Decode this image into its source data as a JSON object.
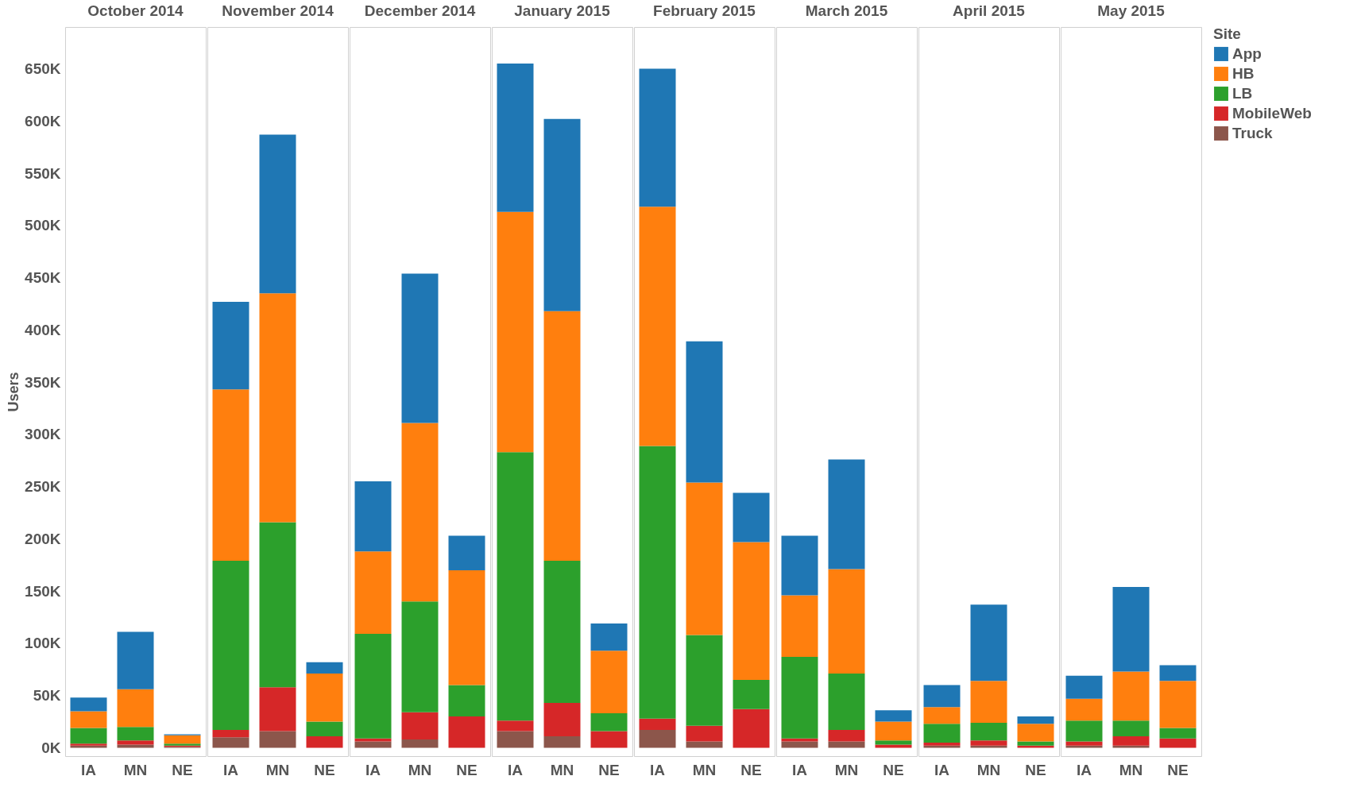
{
  "chart_data": [
    {
      "type": "bar",
      "stacked": true,
      "title": "October 2014",
      "ylabel": "Users",
      "legend": "top right",
      "legend_title": "Site",
      "categories": [
        "IA",
        "MN",
        "NE"
      ],
      "ylim": [
        -8000,
        690000
      ],
      "yticks": [
        {
          "value": 0,
          "label": "0K"
        },
        {
          "value": 50000,
          "label": "50K"
        },
        {
          "value": 100000,
          "label": "100K"
        },
        {
          "value": 150000,
          "label": "150K"
        },
        {
          "value": 200000,
          "label": "200K"
        },
        {
          "value": 250000,
          "label": "250K"
        },
        {
          "value": 300000,
          "label": "300K"
        },
        {
          "value": 350000,
          "label": "350K"
        },
        {
          "value": 400000,
          "label": "400K"
        },
        {
          "value": 450000,
          "label": "450K"
        },
        {
          "value": 500000,
          "label": "500K"
        },
        {
          "value": 550000,
          "label": "550K"
        },
        {
          "value": 600000,
          "label": "600K"
        },
        {
          "value": 650000,
          "label": "650K"
        }
      ],
      "series": [
        {
          "name": "Truck",
          "color": "#8c564b",
          "values": [
            2000,
            3000,
            1000
          ]
        },
        {
          "name": "MobileWeb",
          "color": "#d62728",
          "values": [
            2000,
            4000,
            1000
          ]
        },
        {
          "name": "LB",
          "color": "#2ca02c",
          "values": [
            15000,
            13000,
            2000
          ]
        },
        {
          "name": "HB",
          "color": "#ff7f0e",
          "values": [
            16000,
            36000,
            8000
          ]
        },
        {
          "name": "App",
          "color": "#1f77b4",
          "values": [
            13000,
            55000,
            1000
          ]
        }
      ]
    },
    {
      "type": "bar",
      "stacked": true,
      "title": "November 2014",
      "tick_labels": "x",
      "categories": [
        "IA",
        "MN",
        "NE"
      ],
      "ylim": [
        -8000,
        690000
      ],
      "series": [
        {
          "name": "Truck",
          "color": "#8c564b",
          "values": [
            10000,
            16000,
            null
          ]
        },
        {
          "name": "MobileWeb",
          "color": "#d62728",
          "values": [
            7000,
            42000,
            11000
          ]
        },
        {
          "name": "LB",
          "color": "#2ca02c",
          "values": [
            162000,
            158000,
            14000
          ]
        },
        {
          "name": "HB",
          "color": "#ff7f0e",
          "values": [
            164000,
            219000,
            46000
          ]
        },
        {
          "name": "App",
          "color": "#1f77b4",
          "values": [
            84000,
            152000,
            11000
          ]
        }
      ]
    },
    {
      "type": "bar",
      "stacked": true,
      "title": "December 2014",
      "tick_labels": "x",
      "categories": [
        "IA",
        "MN",
        "NE"
      ],
      "ylim": [
        -8000,
        690000
      ],
      "series": [
        {
          "name": "Truck",
          "color": "#8c564b",
          "values": [
            6000,
            8000,
            null
          ]
        },
        {
          "name": "MobileWeb",
          "color": "#d62728",
          "values": [
            3000,
            26000,
            30000
          ]
        },
        {
          "name": "LB",
          "color": "#2ca02c",
          "values": [
            100000,
            106000,
            30000
          ]
        },
        {
          "name": "HB",
          "color": "#ff7f0e",
          "values": [
            79000,
            171000,
            110000
          ]
        },
        {
          "name": "App",
          "color": "#1f77b4",
          "values": [
            67000,
            143000,
            33000
          ]
        }
      ]
    },
    {
      "type": "bar",
      "stacked": true,
      "title": "January 2015",
      "tick_labels": "x",
      "categories": [
        "IA",
        "MN",
        "NE"
      ],
      "ylim": [
        -8000,
        690000
      ],
      "series": [
        {
          "name": "Truck",
          "color": "#8c564b",
          "values": [
            16000,
            11000,
            null
          ]
        },
        {
          "name": "MobileWeb",
          "color": "#d62728",
          "values": [
            10000,
            32000,
            16000
          ]
        },
        {
          "name": "LB",
          "color": "#2ca02c",
          "values": [
            257000,
            136000,
            17000
          ]
        },
        {
          "name": "HB",
          "color": "#ff7f0e",
          "values": [
            230000,
            239000,
            60000
          ]
        },
        {
          "name": "App",
          "color": "#1f77b4",
          "values": [
            142000,
            184000,
            26000
          ]
        }
      ]
    },
    {
      "type": "bar",
      "stacked": true,
      "title": "February 2015",
      "tick_labels": "x",
      "categories": [
        "IA",
        "MN",
        "NE"
      ],
      "ylim": [
        -8000,
        690000
      ],
      "series": [
        {
          "name": "Truck",
          "color": "#8c564b",
          "values": [
            17000,
            6000,
            null
          ]
        },
        {
          "name": "MobileWeb",
          "color": "#d62728",
          "values": [
            11000,
            15000,
            37000
          ]
        },
        {
          "name": "LB",
          "color": "#2ca02c",
          "values": [
            261000,
            87000,
            28000
          ]
        },
        {
          "name": "HB",
          "color": "#ff7f0e",
          "values": [
            229000,
            146000,
            132000
          ]
        },
        {
          "name": "App",
          "color": "#1f77b4",
          "values": [
            132000,
            135000,
            47000
          ]
        }
      ]
    },
    {
      "type": "bar",
      "stacked": true,
      "title": "March 2015",
      "tick_labels": "x",
      "categories": [
        "IA",
        "MN",
        "NE"
      ],
      "ylim": [
        -8000,
        690000
      ],
      "series": [
        {
          "name": "Truck",
          "color": "#8c564b",
          "values": [
            6000,
            6000,
            null
          ]
        },
        {
          "name": "MobileWeb",
          "color": "#d62728",
          "values": [
            3000,
            11000,
            3000
          ]
        },
        {
          "name": "LB",
          "color": "#2ca02c",
          "values": [
            78000,
            54000,
            4000
          ]
        },
        {
          "name": "HB",
          "color": "#ff7f0e",
          "values": [
            59000,
            100000,
            18000
          ]
        },
        {
          "name": "App",
          "color": "#1f77b4",
          "values": [
            57000,
            105000,
            11000
          ]
        }
      ]
    },
    {
      "type": "bar",
      "stacked": true,
      "title": "April 2015",
      "tick_labels": "x",
      "categories": [
        "IA",
        "MN",
        "NE"
      ],
      "ylim": [
        -8000,
        690000
      ],
      "series": [
        {
          "name": "Truck",
          "color": "#8c564b",
          "values": [
            2000,
            2000,
            null
          ]
        },
        {
          "name": "MobileWeb",
          "color": "#d62728",
          "values": [
            3000,
            5000,
            2000
          ]
        },
        {
          "name": "LB",
          "color": "#2ca02c",
          "values": [
            18000,
            17000,
            4000
          ]
        },
        {
          "name": "HB",
          "color": "#ff7f0e",
          "values": [
            16000,
            40000,
            17000
          ]
        },
        {
          "name": "App",
          "color": "#1f77b4",
          "values": [
            21000,
            73000,
            7000
          ]
        }
      ]
    },
    {
      "type": "bar",
      "stacked": true,
      "title": "May 2015",
      "tick_labels": "x",
      "categories": [
        "IA",
        "MN",
        "NE"
      ],
      "ylim": [
        -8000,
        690000
      ],
      "series": [
        {
          "name": "Truck",
          "color": "#8c564b",
          "values": [
            2000,
            2000,
            null
          ]
        },
        {
          "name": "MobileWeb",
          "color": "#d62728",
          "values": [
            4000,
            9000,
            9000
          ]
        },
        {
          "name": "LB",
          "color": "#2ca02c",
          "values": [
            20000,
            15000,
            10000
          ]
        },
        {
          "name": "HB",
          "color": "#ff7f0e",
          "values": [
            21000,
            47000,
            45000
          ]
        },
        {
          "name": "App",
          "color": "#1f77b4",
          "values": [
            22000,
            81000,
            15000
          ]
        }
      ]
    }
  ]
}
